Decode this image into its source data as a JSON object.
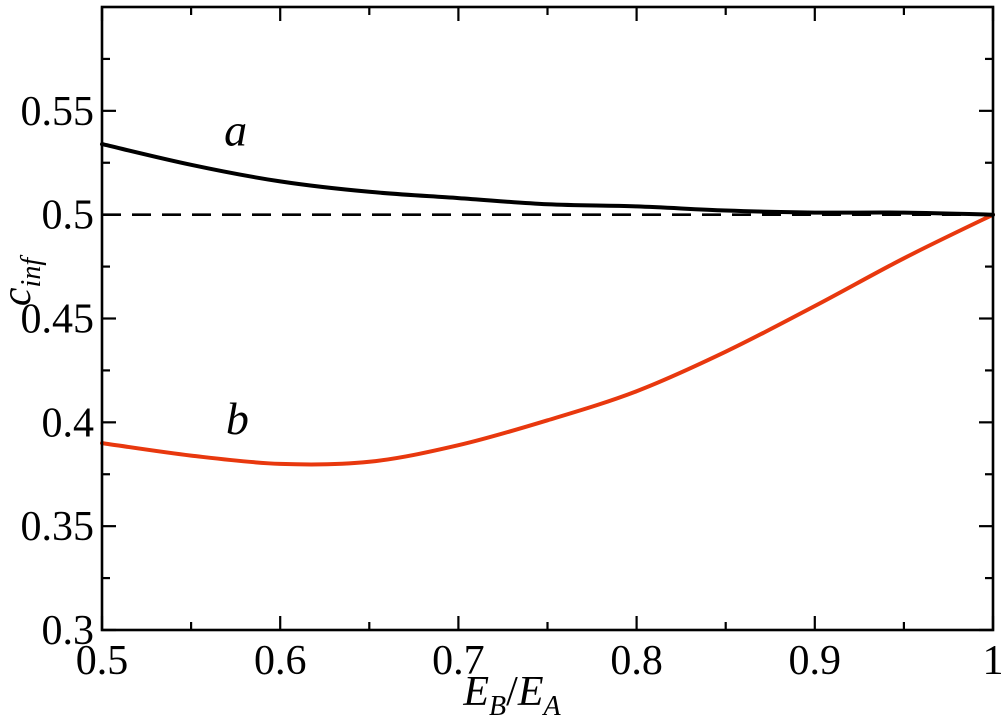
{
  "figure": {
    "background": "#ffffff",
    "frame_color": "#000000"
  },
  "chart_data": {
    "type": "line",
    "title": "",
    "xlabel": "E_B/E_A",
    "ylabel": "c_inf",
    "xlim": [
      0.5,
      1.0
    ],
    "ylim": [
      0.3,
      0.6
    ],
    "grid": false,
    "legend": "none",
    "x": [
      0.5,
      0.55,
      0.6,
      0.65,
      0.7,
      0.75,
      0.8,
      0.85,
      0.9,
      0.95,
      1.0
    ],
    "series": [
      {
        "name": "a",
        "color": "#000000",
        "style": "solid",
        "line_width": 4,
        "values": [
          0.534,
          0.524,
          0.516,
          0.511,
          0.508,
          0.505,
          0.504,
          0.502,
          0.501,
          0.501,
          0.5
        ]
      },
      {
        "name": "b",
        "color": "#e8380e",
        "style": "solid",
        "line_width": 4,
        "values": [
          0.39,
          0.384,
          0.38,
          0.381,
          0.389,
          0.401,
          0.415,
          0.434,
          0.456,
          0.479,
          0.5
        ]
      }
    ],
    "reference_line": {
      "y": 0.5,
      "color": "#000000",
      "style": "dashed"
    },
    "x_axis": {
      "tick_values": [
        0.5,
        0.6,
        0.7,
        0.8,
        0.9,
        1.0
      ],
      "tick_labels": [
        "0.5",
        "0.6",
        "0.7",
        "0.8",
        "0.9",
        "1"
      ],
      "minor_tick_values": [
        0.55,
        0.65,
        0.75,
        0.85,
        0.95
      ]
    },
    "y_axis": {
      "tick_values": [
        0.3,
        0.35,
        0.4,
        0.45,
        0.5,
        0.55
      ],
      "tick_labels": [
        "0.3",
        "0.35",
        "0.4",
        "0.45",
        "0.5",
        "0.55"
      ],
      "minor_tick_values": [
        0.325,
        0.375,
        0.425,
        0.475,
        0.525,
        0.575
      ]
    },
    "annotations": [
      {
        "text": "a",
        "x": 0.575,
        "y": 0.541
      },
      {
        "text": "b",
        "x": 0.576,
        "y": 0.402
      }
    ]
  },
  "axis_labels": {
    "x": {
      "e1": "E",
      "s1": "B",
      "slash": "/",
      "e2": "E",
      "s2": "A"
    },
    "y": {
      "main": "c",
      "sub": "inf"
    }
  }
}
